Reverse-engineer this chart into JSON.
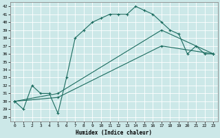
{
  "xlabel": "Humidex (Indice chaleur)",
  "bg_color": "#cce8e8",
  "line_color": "#1a6b5e",
  "grid_color": "#ffffff",
  "xlim": [
    -0.5,
    23.5
  ],
  "ylim": [
    27.5,
    42.5
  ],
  "xticks": [
    0,
    1,
    2,
    3,
    4,
    5,
    6,
    7,
    8,
    9,
    10,
    11,
    12,
    13,
    14,
    15,
    16,
    17,
    18,
    19,
    20,
    21,
    22,
    23
  ],
  "yticks": [
    28,
    29,
    30,
    31,
    32,
    33,
    34,
    35,
    36,
    37,
    38,
    39,
    40,
    41,
    42
  ],
  "line1_x": [
    0,
    1,
    2,
    3,
    4,
    5,
    6,
    7,
    8,
    9,
    10,
    11,
    12,
    13,
    14,
    15,
    16,
    17,
    18,
    19,
    20,
    21,
    22,
    23
  ],
  "line1_y": [
    30,
    29,
    32,
    31,
    31,
    28.5,
    33,
    38,
    39,
    40,
    40.5,
    41,
    41,
    41,
    42,
    41.5,
    41,
    40,
    39,
    38.5,
    36,
    37,
    36,
    36
  ],
  "line2_x": [
    0,
    5,
    17,
    23
  ],
  "line2_y": [
    30,
    31,
    39,
    36
  ],
  "line3_x": [
    0,
    5,
    17,
    23
  ],
  "line3_y": [
    30,
    30.5,
    37,
    36
  ]
}
